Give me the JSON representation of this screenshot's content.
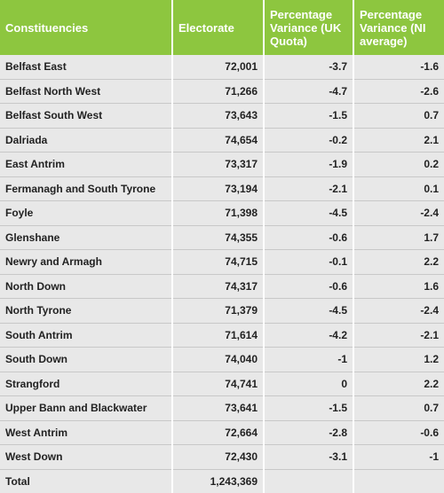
{
  "columns": [
    "Constituencies",
    "Electorate",
    "Percentage Variance (UK Quota)",
    "Percentage Variance (NI average)"
  ],
  "rows": [
    [
      "Belfast East",
      "72,001",
      "-3.7",
      "-1.6"
    ],
    [
      "Belfast North West",
      "71,266",
      "-4.7",
      "-2.6"
    ],
    [
      "Belfast South West",
      "73,643",
      "-1.5",
      "0.7"
    ],
    [
      "Dalriada",
      "74,654",
      "-0.2",
      "2.1"
    ],
    [
      "East Antrim",
      "73,317",
      "-1.9",
      "0.2"
    ],
    [
      "Fermanagh and South Tyrone",
      "73,194",
      "-2.1",
      "0.1"
    ],
    [
      "Foyle",
      "71,398",
      "-4.5",
      "-2.4"
    ],
    [
      "Glenshane",
      "74,355",
      "-0.6",
      "1.7"
    ],
    [
      "Newry and Armagh",
      "74,715",
      "-0.1",
      "2.2"
    ],
    [
      "North Down",
      "74,317",
      "-0.6",
      "1.6"
    ],
    [
      "North Tyrone",
      "71,379",
      "-4.5",
      "-2.4"
    ],
    [
      "South Antrim",
      "71,614",
      "-4.2",
      "-2.1"
    ],
    [
      "South Down",
      "74,040",
      "-1",
      "1.2"
    ],
    [
      "Strangford",
      "74,741",
      "0",
      "2.2"
    ],
    [
      "Upper Bann and Blackwater",
      "73,641",
      "-1.5",
      "0.7"
    ],
    [
      "West Antrim",
      "72,664",
      "-2.8",
      "-0.6"
    ],
    [
      "West Down",
      "72,430",
      "-3.1",
      "-1"
    ]
  ],
  "total": {
    "label": "Total",
    "electorate": "1,243,369"
  },
  "colors": {
    "header_bg": "#8dc63f",
    "row_bg": "#e8e8e8",
    "divider": "#c8c8c8"
  }
}
